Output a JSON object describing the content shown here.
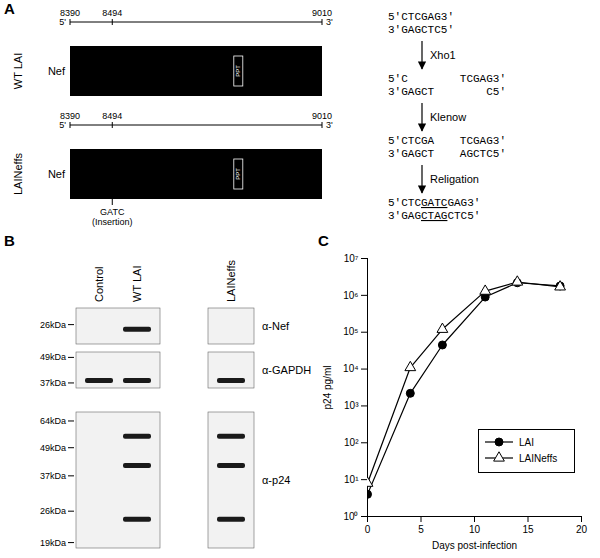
{
  "panel_a": {
    "label": "A",
    "constructs": [
      {
        "name": "WT LAI",
        "gene": "Nef",
        "five": "5'",
        "three": "3'",
        "positions": [
          8390,
          8494,
          9010
        ],
        "element": "PPT"
      },
      {
        "name": "LAINeffs",
        "gene": "Nef",
        "five": "5'",
        "three": "3'",
        "positions": [
          8390,
          8494,
          9010
        ],
        "element": "PPT",
        "insertion": "GATC",
        "insertion_label": "(Insertion)"
      }
    ],
    "steps": [
      {
        "top": [
          "5'CTCGAG3'"
        ],
        "bottom": [
          "3'GAGCTC5'"
        ]
      },
      {
        "via": "Xho1",
        "top": [
          "5'C",
          "TCGAG3'"
        ],
        "bottom": [
          "3'GAGCT",
          "C5'"
        ]
      },
      {
        "via": "Klenow",
        "top": [
          "5'CTCGA",
          "TCGAG3'"
        ],
        "bottom": [
          "3'GAGCT",
          "AGCTC5'"
        ]
      },
      {
        "via": "Religation",
        "top": [
          "5'CTC",
          "GATC",
          "GAG3'"
        ],
        "bottom": [
          "3'GAG",
          "CTAG",
          "CTC5'"
        ]
      }
    ]
  },
  "panel_b": {
    "label": "B",
    "lane_groups": [
      [
        "Control",
        "WT LAI"
      ],
      [
        "LAINeffs"
      ]
    ],
    "rows": [
      {
        "antibody": "α-Nef",
        "kda_range": [
          30,
          22
        ],
        "markers": [
          {
            "value": 26,
            "label": "26kDa"
          }
        ],
        "bands": [
          {
            "lane": "WT LAI",
            "kda": 25
          }
        ]
      },
      {
        "antibody": "α-GAPDH",
        "kda_range": [
          52,
          35
        ],
        "markers": [
          {
            "value": 49,
            "label": "49kDa"
          },
          {
            "value": 37,
            "label": "37kDa"
          }
        ],
        "bands": [
          {
            "lane": "Control",
            "kda": 38
          },
          {
            "lane": "WT LAI",
            "kda": 38
          },
          {
            "lane": "LAINeffs",
            "kda": 38
          }
        ]
      },
      {
        "antibody": "α-p24",
        "kda_range": [
          70,
          18
        ],
        "markers": [
          {
            "value": 64,
            "label": "64kDa"
          },
          {
            "value": 49,
            "label": "49kDa"
          },
          {
            "value": 37,
            "label": "37kDa"
          },
          {
            "value": 26,
            "label": "26kDa"
          },
          {
            "value": 19,
            "label": "19kDa"
          }
        ],
        "bands": [
          {
            "lane": "WT LAI",
            "kda": 55
          },
          {
            "lane": "WT LAI",
            "kda": 41
          },
          {
            "lane": "WT LAI",
            "kda": 24
          },
          {
            "lane": "LAINeffs",
            "kda": 55
          },
          {
            "lane": "LAINeffs",
            "kda": 41
          },
          {
            "lane": "LAINeffs",
            "kda": 24
          }
        ]
      }
    ]
  },
  "chart_data": {
    "type": "line",
    "title": "C",
    "x": [
      0,
      4,
      7,
      11,
      14,
      18
    ],
    "series": [
      {
        "name": "LAI",
        "color": "#000000",
        "marker": "filled circle",
        "values": [
          4,
          2200,
          45000,
          900000,
          2200000,
          1800000
        ]
      },
      {
        "name": "LAINeffs",
        "color": "#000000",
        "marker": "open triangle",
        "values": [
          8,
          11000,
          120000,
          1300000,
          2300000,
          1700000
        ]
      }
    ],
    "xlabel": "Days post-infection",
    "ylabel": "p24 pg/ml",
    "xlim": [
      0,
      20
    ],
    "xticks": [
      0,
      5,
      10,
      15,
      20
    ],
    "ylim": [
      1,
      10000000
    ],
    "yticks": [
      {
        "value": 1,
        "label": "10⁰"
      },
      {
        "value": 10,
        "label": "10¹"
      },
      {
        "value": 100,
        "label": "10²"
      },
      {
        "value": 1000,
        "label": "10³"
      },
      {
        "value": 10000,
        "label": "10⁴"
      },
      {
        "value": 100000,
        "label": "10⁵"
      },
      {
        "value": 1000000,
        "label": "10⁶"
      },
      {
        "value": 10000000,
        "label": "10⁷"
      }
    ],
    "log": "y",
    "legend": "lower right"
  }
}
